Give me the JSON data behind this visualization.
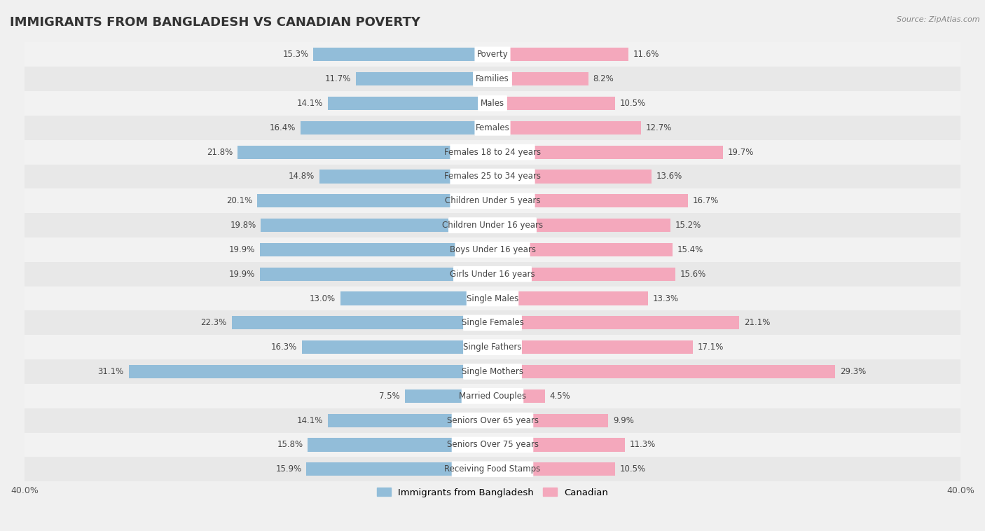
{
  "title": "IMMIGRANTS FROM BANGLADESH VS CANADIAN POVERTY",
  "source": "Source: ZipAtlas.com",
  "categories": [
    "Poverty",
    "Families",
    "Males",
    "Females",
    "Females 18 to 24 years",
    "Females 25 to 34 years",
    "Children Under 5 years",
    "Children Under 16 years",
    "Boys Under 16 years",
    "Girls Under 16 years",
    "Single Males",
    "Single Females",
    "Single Fathers",
    "Single Mothers",
    "Married Couples",
    "Seniors Over 65 years",
    "Seniors Over 75 years",
    "Receiving Food Stamps"
  ],
  "bangladesh_values": [
    15.3,
    11.7,
    14.1,
    16.4,
    21.8,
    14.8,
    20.1,
    19.8,
    19.9,
    19.9,
    13.0,
    22.3,
    16.3,
    31.1,
    7.5,
    14.1,
    15.8,
    15.9
  ],
  "canadian_values": [
    11.6,
    8.2,
    10.5,
    12.7,
    19.7,
    13.6,
    16.7,
    15.2,
    15.4,
    15.6,
    13.3,
    21.1,
    17.1,
    29.3,
    4.5,
    9.9,
    11.3,
    10.5
  ],
  "bangladesh_color": "#92bdd9",
  "canadian_color": "#f4a8bc",
  "row_color_even": "#f2f2f2",
  "row_color_odd": "#e8e8e8",
  "background_color": "#f0f0f0",
  "xlim": 40.0,
  "bar_height": 0.55,
  "legend_bangladesh": "Immigrants from Bangladesh",
  "legend_canadian": "Canadian",
  "title_fontsize": 13,
  "label_fontsize": 8.5,
  "value_fontsize": 8.5
}
